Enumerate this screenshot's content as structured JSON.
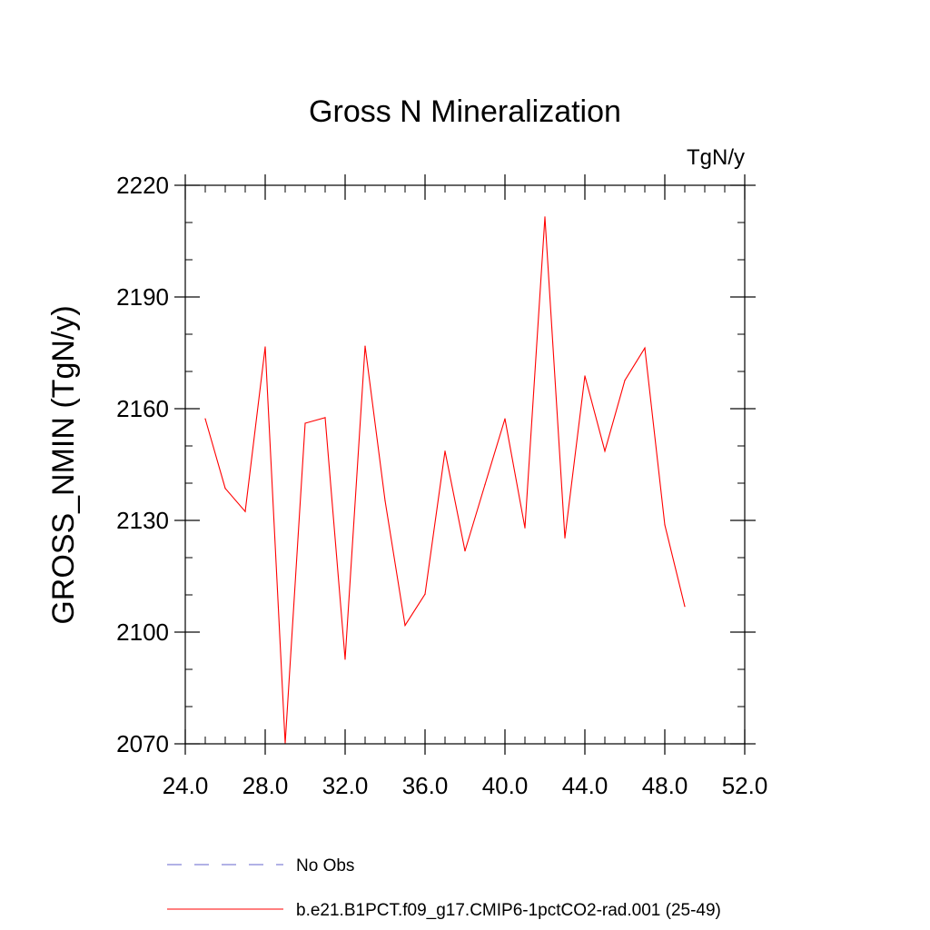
{
  "chart_data": {
    "type": "line",
    "title": "Gross N Mineralization",
    "units": "TgN/y",
    "ylabel": "GROSS_NMIN  (TgN/y)",
    "xlabel": "",
    "xlim": [
      24.0,
      52.0
    ],
    "ylim": [
      2070,
      2220
    ],
    "x_ticks": [
      "24.0",
      "28.0",
      "32.0",
      "36.0",
      "40.0",
      "44.0",
      "48.0",
      "52.0"
    ],
    "y_ticks": [
      "2220",
      "2190",
      "2160",
      "2130",
      "2100",
      "2070"
    ],
    "grid": false,
    "legend_position": "bottom",
    "series": [
      {
        "name": "b.e21.B1PCT.f09_g17.CMIP6-1pctCO2-rad.001 (25-49)",
        "color": "#ff0000",
        "dash": "solid",
        "x": [
          25,
          26,
          27,
          28,
          29,
          30,
          31,
          32,
          33,
          34,
          35,
          36,
          37,
          38,
          39,
          40,
          41,
          42,
          43,
          44,
          45,
          46,
          47,
          48,
          49
        ],
        "y": [
          2157.3,
          2138.6,
          2132.4,
          2176.6,
          2070.1,
          2156.1,
          2157.6,
          2092.7,
          2176.8,
          2135.3,
          2101.8,
          2110.2,
          2148.6,
          2121.8,
          2139.6,
          2157.3,
          2128.0,
          2211.5,
          2125.3,
          2168.8,
          2148.6,
          2167.6,
          2176.3,
          2128.8,
          2106.9
        ]
      }
    ],
    "legend": [
      {
        "label": "No Obs",
        "color": "#6666cc",
        "dash": "dashed"
      },
      {
        "label": "b.e21.B1PCT.f09_g17.CMIP6-1pctCO2-rad.001 (25-49)",
        "color": "#ff0000",
        "dash": "solid"
      }
    ]
  }
}
